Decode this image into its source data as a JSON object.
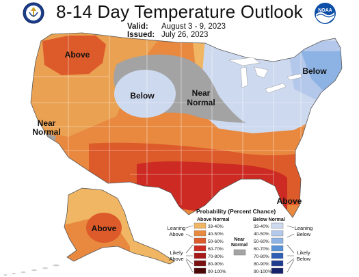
{
  "title": "8-14 Day Temperature Outlook",
  "valid_label": "Valid:",
  "valid_dates": "August 3 - 9, 2023",
  "issued_label": "Issued:",
  "issued_date": "July 26, 2023",
  "logos": {
    "left": "commerce-seal-icon",
    "right": "noaa-logo-icon",
    "right_text": "NOAA"
  },
  "region_labels": {
    "northwest_above": "Above",
    "plains_below": "Below",
    "midwest_near_1": "Near",
    "midwest_near_2": "Normal",
    "west_near_1": "Near",
    "west_near_2": "Normal",
    "northeast_below": "Below",
    "florida_above": "Above",
    "alaska_above": "Above"
  },
  "legend": {
    "title": "Probability (Percent Chance)",
    "above_header": "Above Normal",
    "below_header": "Below Normal",
    "near_label_1": "Near",
    "near_label_2": "Normal",
    "leaning_above_1": "Leaning",
    "leaning_above_2": "Above",
    "likely_above_1": "Likely",
    "likely_above_2": "Above",
    "leaning_below_1": "Leaning",
    "leaning_below_2": "Below",
    "likely_below_1": "Likely",
    "likely_below_2": "Below",
    "above_ranges": [
      "33-40%",
      "40-50%",
      "50-60%",
      "60-70%",
      "70-80%",
      "80-90%",
      "90-100%"
    ],
    "below_ranges": [
      "33-40%",
      "40-50%",
      "50-60%",
      "60-70%",
      "70-80%",
      "80-90%",
      "90-100%"
    ],
    "above_colors": [
      "#f0b664",
      "#e8893f",
      "#dd5a2a",
      "#cc2a22",
      "#a81818",
      "#7a1010",
      "#4d0808"
    ],
    "below_colors": [
      "#cdd9ef",
      "#b3c8ea",
      "#8cb3e4",
      "#5a92d6",
      "#2f5fb5",
      "#1f3c8f",
      "#16236a"
    ],
    "near_color": "#a3a3a3"
  }
}
